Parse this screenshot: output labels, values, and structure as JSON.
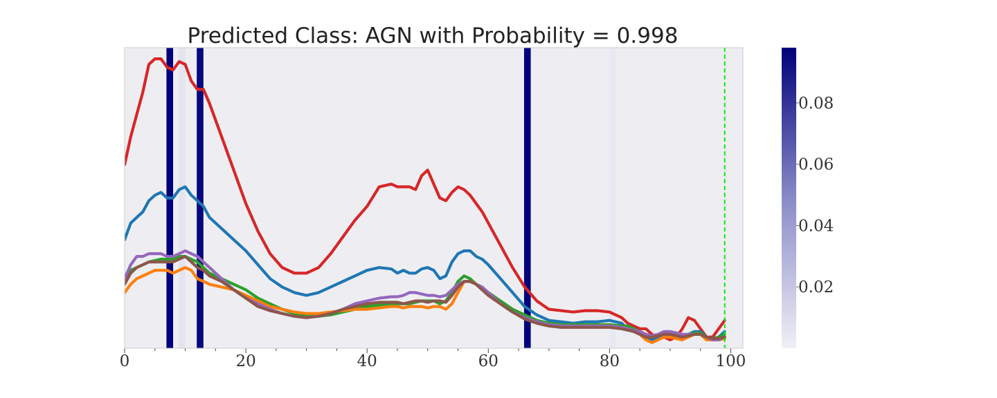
{
  "chart_data": {
    "type": "line",
    "title": "Predicted Class: AGN with Probability = 0.998",
    "xlabel": "",
    "ylabel": "",
    "xlim": [
      0,
      102
    ],
    "ylim": [
      -0.05,
      1.03
    ],
    "x_ticks": [
      0,
      20,
      40,
      60,
      80,
      100
    ],
    "x_tick_labels": [
      "0",
      "20",
      "40",
      "60",
      "80",
      "100"
    ],
    "grid": false,
    "legend": "none",
    "background_color": "#eeeef2",
    "vertical_marker": {
      "x": 99,
      "color": "#00ee00",
      "style": "dashed"
    },
    "attention_bands": [
      {
        "x0": 6.9,
        "x1": 8.0,
        "value": 0.098
      },
      {
        "x0": 8.9,
        "x1": 10.0,
        "value": 0.006
      },
      {
        "x0": 11.9,
        "x1": 13.0,
        "value": 0.095
      },
      {
        "x0": 65.9,
        "x1": 67.0,
        "value": 0.097
      },
      {
        "x0": 79.9,
        "x1": 81.0,
        "value": 0.004
      }
    ],
    "colorbar": {
      "min": 0.0,
      "max": 0.098,
      "ticks": [
        0.02,
        0.04,
        0.06,
        0.08
      ],
      "tick_labels": [
        "0.02",
        "0.04",
        "0.06",
        "0.08"
      ],
      "colors": [
        "#f0f0f6",
        "#8a8ac8",
        "#00007a"
      ]
    },
    "series": [
      {
        "color": "#d62728",
        "x": [
          0,
          1,
          2,
          3,
          4,
          5,
          6,
          7,
          8,
          9,
          10,
          11,
          12,
          13,
          14,
          16,
          18,
          20,
          22,
          24,
          26,
          28,
          30,
          32,
          34,
          36,
          38,
          40,
          42,
          44,
          45,
          46,
          47,
          48,
          49,
          50,
          51,
          52,
          53,
          54,
          55,
          56,
          57,
          58,
          59,
          60,
          62,
          64,
          66,
          68,
          70,
          72,
          74,
          76,
          78,
          80,
          82,
          83,
          84,
          85,
          86,
          87,
          88,
          89,
          90,
          91,
          92,
          93,
          94,
          95,
          96,
          97,
          98,
          99
        ],
        "y": [
          0.61,
          0.71,
          0.79,
          0.87,
          0.97,
          0.99,
          0.99,
          0.96,
          0.95,
          0.98,
          0.97,
          0.91,
          0.88,
          0.88,
          0.83,
          0.71,
          0.59,
          0.47,
          0.37,
          0.29,
          0.24,
          0.22,
          0.22,
          0.24,
          0.29,
          0.35,
          0.41,
          0.46,
          0.53,
          0.54,
          0.53,
          0.53,
          0.53,
          0.52,
          0.57,
          0.59,
          0.54,
          0.49,
          0.48,
          0.51,
          0.53,
          0.52,
          0.5,
          0.47,
          0.44,
          0.4,
          0.32,
          0.24,
          0.17,
          0.12,
          0.09,
          0.085,
          0.08,
          0.085,
          0.085,
          0.08,
          0.06,
          0.04,
          0.03,
          0.02,
          0.02,
          0.0,
          -0.01,
          -0.01,
          -0.02,
          -0.01,
          0.02,
          0.06,
          0.05,
          0.02,
          -0.01,
          -0.01,
          0.02,
          0.05
        ]
      },
      {
        "color": "#1f77b4",
        "x": [
          0,
          1,
          2,
          3,
          4,
          5,
          6,
          7,
          8,
          9,
          10,
          11,
          12,
          13,
          14,
          16,
          18,
          20,
          22,
          24,
          26,
          28,
          30,
          32,
          34,
          36,
          38,
          40,
          42,
          44,
          45,
          46,
          47,
          48,
          49,
          50,
          51,
          52,
          53,
          54,
          55,
          56,
          57,
          58,
          59,
          60,
          62,
          64,
          66,
          68,
          70,
          72,
          74,
          76,
          78,
          80,
          82,
          83,
          84,
          85,
          86,
          87,
          88,
          89,
          90,
          91,
          92,
          93,
          94,
          95,
          96,
          97,
          98,
          99
        ],
        "y": [
          0.34,
          0.4,
          0.42,
          0.44,
          0.48,
          0.5,
          0.51,
          0.49,
          0.49,
          0.52,
          0.53,
          0.5,
          0.48,
          0.46,
          0.42,
          0.38,
          0.34,
          0.3,
          0.25,
          0.2,
          0.17,
          0.15,
          0.14,
          0.15,
          0.17,
          0.19,
          0.21,
          0.23,
          0.24,
          0.235,
          0.22,
          0.23,
          0.22,
          0.22,
          0.235,
          0.24,
          0.23,
          0.2,
          0.21,
          0.26,
          0.29,
          0.3,
          0.3,
          0.28,
          0.27,
          0.25,
          0.2,
          0.15,
          0.1,
          0.07,
          0.05,
          0.045,
          0.04,
          0.045,
          0.045,
          0.05,
          0.04,
          0.02,
          0.01,
          0.0,
          -0.01,
          -0.02,
          -0.01,
          0.0,
          0.0,
          -0.005,
          -0.01,
          0.0,
          0.01,
          0.01,
          -0.01,
          -0.02,
          -0.01,
          0.01
        ]
      },
      {
        "color": "#2ca02c",
        "x": [
          0,
          1,
          2,
          3,
          4,
          5,
          6,
          7,
          8,
          9,
          10,
          11,
          12,
          13,
          14,
          16,
          18,
          20,
          22,
          24,
          26,
          28,
          30,
          32,
          34,
          36,
          38,
          40,
          42,
          44,
          45,
          46,
          47,
          48,
          49,
          50,
          51,
          52,
          53,
          54,
          55,
          56,
          57,
          58,
          59,
          60,
          62,
          64,
          66,
          68,
          70,
          72,
          74,
          76,
          78,
          80,
          82,
          83,
          84,
          85,
          86,
          87,
          88,
          89,
          90,
          91,
          92,
          93,
          94,
          95,
          96,
          97,
          98,
          99
        ],
        "y": [
          0.2,
          0.23,
          0.24,
          0.25,
          0.26,
          0.265,
          0.27,
          0.27,
          0.27,
          0.28,
          0.28,
          0.27,
          0.26,
          0.24,
          0.22,
          0.2,
          0.18,
          0.16,
          0.13,
          0.11,
          0.09,
          0.075,
          0.065,
          0.065,
          0.07,
          0.08,
          0.09,
          0.1,
          0.105,
          0.11,
          0.11,
          0.11,
          0.11,
          0.115,
          0.12,
          0.12,
          0.12,
          0.11,
          0.12,
          0.15,
          0.19,
          0.21,
          0.2,
          0.18,
          0.16,
          0.15,
          0.12,
          0.09,
          0.07,
          0.05,
          0.04,
          0.035,
          0.035,
          0.035,
          0.035,
          0.035,
          0.03,
          0.03,
          0.02,
          0.01,
          0.0,
          -0.01,
          -0.005,
          0.0,
          0.0,
          -0.005,
          -0.01,
          0.0,
          0.005,
          0.005,
          -0.01,
          -0.015,
          -0.01,
          0.0
        ]
      },
      {
        "color": "#ff7f0e",
        "x": [
          0,
          1,
          2,
          3,
          4,
          5,
          6,
          7,
          8,
          9,
          10,
          11,
          12,
          13,
          14,
          16,
          18,
          20,
          22,
          24,
          26,
          28,
          30,
          32,
          34,
          36,
          38,
          40,
          42,
          44,
          45,
          46,
          47,
          48,
          49,
          50,
          51,
          52,
          53,
          54,
          55,
          56,
          57,
          58,
          59,
          60,
          62,
          64,
          66,
          68,
          70,
          72,
          74,
          76,
          78,
          80,
          82,
          83,
          84,
          85,
          86,
          87,
          88,
          89,
          90,
          91,
          92,
          93,
          94,
          95,
          96,
          97,
          98,
          99
        ],
        "y": [
          0.15,
          0.18,
          0.2,
          0.21,
          0.22,
          0.23,
          0.23,
          0.23,
          0.22,
          0.23,
          0.24,
          0.23,
          0.2,
          0.19,
          0.18,
          0.17,
          0.16,
          0.14,
          0.12,
          0.1,
          0.09,
          0.08,
          0.075,
          0.075,
          0.08,
          0.085,
          0.09,
          0.09,
          0.095,
          0.1,
          0.1,
          0.095,
          0.1,
          0.1,
          0.1,
          0.095,
          0.1,
          0.1,
          0.09,
          0.11,
          0.15,
          0.19,
          0.19,
          0.18,
          0.16,
          0.14,
          0.11,
          0.08,
          0.06,
          0.045,
          0.035,
          0.03,
          0.03,
          0.03,
          0.03,
          0.03,
          0.025,
          0.02,
          0.01,
          0.0,
          -0.02,
          -0.03,
          -0.02,
          -0.01,
          -0.01,
          -0.015,
          -0.02,
          -0.01,
          0.0,
          0.0,
          -0.02,
          -0.02,
          -0.02,
          -0.015
        ]
      },
      {
        "color": "#9467bd",
        "x": [
          0,
          1,
          2,
          3,
          4,
          5,
          6,
          7,
          8,
          9,
          10,
          11,
          12,
          13,
          14,
          16,
          18,
          20,
          22,
          24,
          26,
          28,
          30,
          32,
          34,
          36,
          38,
          40,
          42,
          44,
          45,
          46,
          47,
          48,
          49,
          50,
          51,
          52,
          53,
          54,
          55,
          56,
          57,
          58,
          59,
          60,
          62,
          64,
          66,
          68,
          70,
          72,
          74,
          76,
          78,
          80,
          82,
          83,
          84,
          85,
          86,
          87,
          88,
          89,
          90,
          91,
          92,
          93,
          94,
          95,
          96,
          97,
          98,
          99
        ],
        "y": [
          0.2,
          0.25,
          0.28,
          0.28,
          0.29,
          0.29,
          0.29,
          0.28,
          0.28,
          0.29,
          0.3,
          0.29,
          0.28,
          0.26,
          0.24,
          0.2,
          0.16,
          0.13,
          0.11,
          0.09,
          0.075,
          0.065,
          0.06,
          0.065,
          0.075,
          0.09,
          0.11,
          0.12,
          0.13,
          0.135,
          0.135,
          0.14,
          0.15,
          0.15,
          0.145,
          0.14,
          0.14,
          0.135,
          0.14,
          0.16,
          0.18,
          0.19,
          0.19,
          0.18,
          0.17,
          0.15,
          0.11,
          0.08,
          0.06,
          0.045,
          0.035,
          0.03,
          0.03,
          0.03,
          0.03,
          0.03,
          0.025,
          0.02,
          0.015,
          0.01,
          0.0,
          -0.005,
          0.0,
          0.01,
          0.01,
          0.005,
          0.0,
          0.0,
          0.0,
          0.0,
          -0.01,
          -0.02,
          -0.02,
          -0.01
        ]
      },
      {
        "color": "#8c564b",
        "x": [
          0,
          1,
          2,
          3,
          4,
          5,
          6,
          7,
          8,
          9,
          10,
          11,
          12,
          13,
          14,
          16,
          18,
          20,
          22,
          24,
          26,
          28,
          30,
          32,
          34,
          36,
          38,
          40,
          42,
          44,
          45,
          46,
          47,
          48,
          49,
          50,
          51,
          52,
          53,
          54,
          55,
          56,
          57,
          58,
          59,
          60,
          62,
          64,
          66,
          68,
          70,
          72,
          74,
          76,
          78,
          80,
          82,
          83,
          84,
          85,
          86,
          87,
          88,
          89,
          90,
          91,
          92,
          93,
          94,
          95,
          96,
          97,
          98,
          99
        ],
        "y": [
          0.18,
          0.22,
          0.24,
          0.25,
          0.26,
          0.26,
          0.26,
          0.26,
          0.26,
          0.27,
          0.28,
          0.26,
          0.24,
          0.23,
          0.21,
          0.19,
          0.16,
          0.13,
          0.1,
          0.085,
          0.075,
          0.065,
          0.06,
          0.065,
          0.075,
          0.09,
          0.1,
          0.11,
          0.115,
          0.115,
          0.115,
          0.11,
          0.115,
          0.12,
          0.12,
          0.115,
          0.12,
          0.12,
          0.115,
          0.14,
          0.17,
          0.19,
          0.19,
          0.18,
          0.16,
          0.14,
          0.11,
          0.08,
          0.055,
          0.04,
          0.03,
          0.025,
          0.025,
          0.025,
          0.025,
          0.025,
          0.02,
          0.015,
          0.01,
          0.0,
          -0.01,
          -0.01,
          -0.005,
          0.0,
          0.0,
          -0.005,
          -0.01,
          -0.005,
          0.0,
          0.0,
          -0.01,
          -0.015,
          -0.015,
          -0.01
        ]
      }
    ]
  }
}
